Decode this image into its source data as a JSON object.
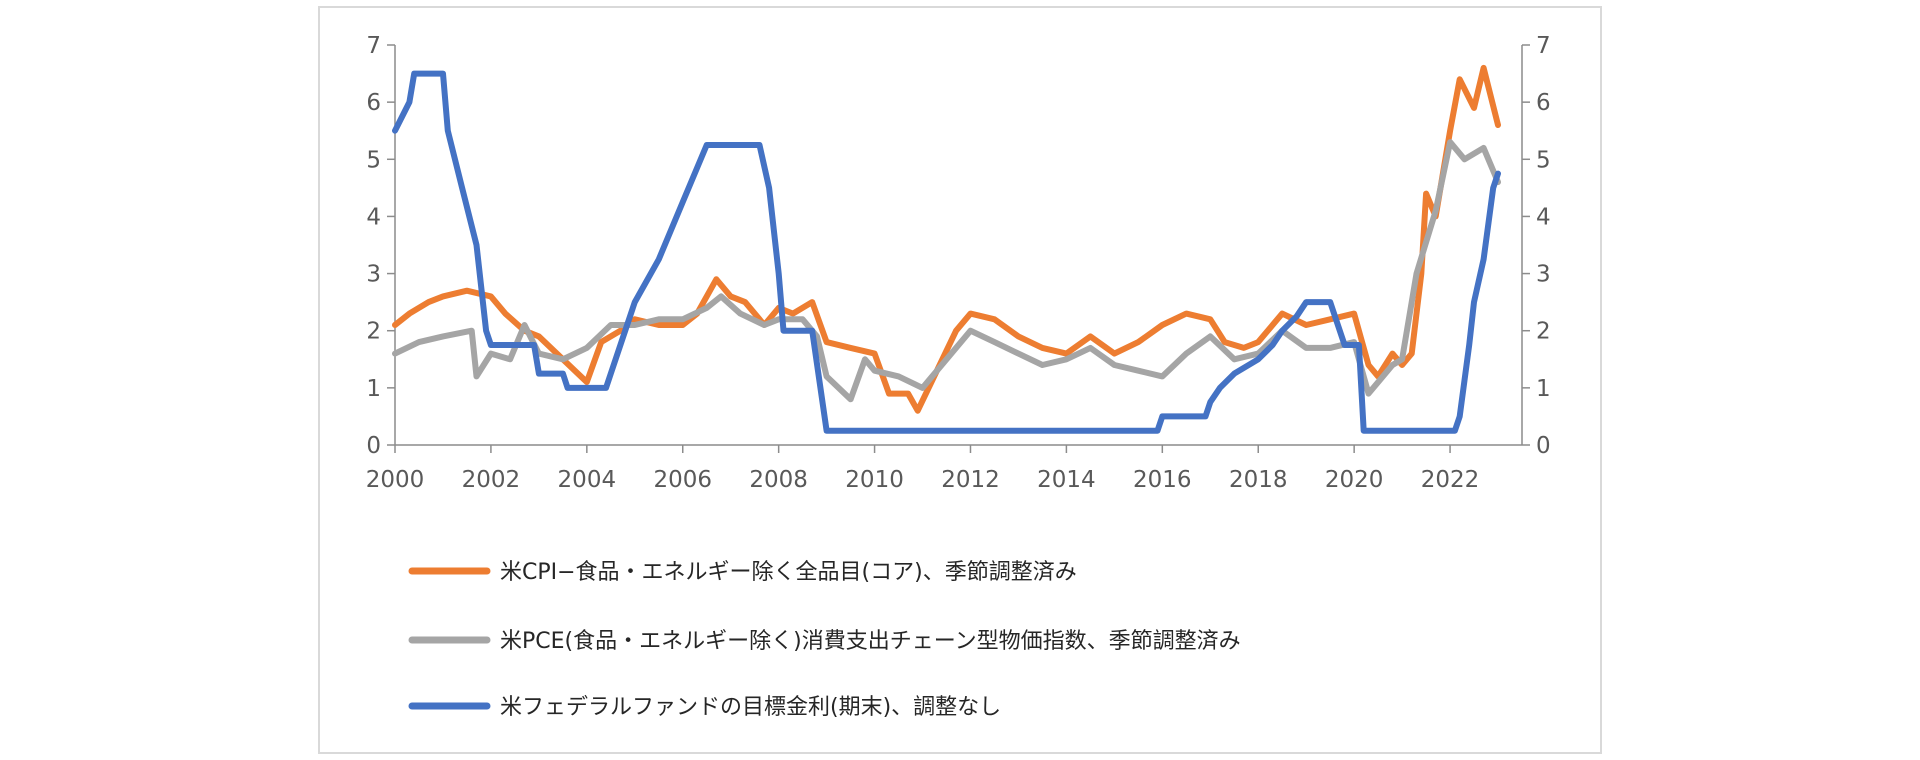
{
  "chart_data": {
    "type": "line",
    "x_range": [
      2000,
      2023.5
    ],
    "y_range": [
      0,
      7
    ],
    "y_ticks": [
      0,
      1,
      2,
      3,
      4,
      5,
      6,
      7
    ],
    "x_ticks": [
      2000,
      2002,
      2004,
      2006,
      2008,
      2010,
      2012,
      2014,
      2016,
      2018,
      2020,
      2022
    ],
    "x_tick_labels": [
      "2000",
      "2002",
      "2004",
      "2006",
      "2008",
      "2010",
      "2012",
      "2014",
      "2016",
      "2018",
      "2020",
      "2022"
    ],
    "dual_axis": true,
    "grid": false,
    "legend_position": "bottom",
    "series": [
      {
        "name": "米CPI−食品・エネルギー除く全品目(コア)、季節調整済み",
        "color": "#ED7D31",
        "points": [
          [
            2000.0,
            2.1
          ],
          [
            2000.3,
            2.3
          ],
          [
            2000.7,
            2.5
          ],
          [
            2001.0,
            2.6
          ],
          [
            2001.5,
            2.7
          ],
          [
            2002.0,
            2.6
          ],
          [
            2002.3,
            2.3
          ],
          [
            2002.7,
            2.0
          ],
          [
            2003.0,
            1.9
          ],
          [
            2003.5,
            1.5
          ],
          [
            2004.0,
            1.1
          ],
          [
            2004.3,
            1.8
          ],
          [
            2004.7,
            2.0
          ],
          [
            2005.0,
            2.2
          ],
          [
            2005.5,
            2.1
          ],
          [
            2006.0,
            2.1
          ],
          [
            2006.3,
            2.3
          ],
          [
            2006.7,
            2.9
          ],
          [
            2007.0,
            2.6
          ],
          [
            2007.3,
            2.5
          ],
          [
            2007.7,
            2.1
          ],
          [
            2008.0,
            2.4
          ],
          [
            2008.3,
            2.3
          ],
          [
            2008.7,
            2.5
          ],
          [
            2009.0,
            1.8
          ],
          [
            2009.5,
            1.7
          ],
          [
            2010.0,
            1.6
          ],
          [
            2010.3,
            0.9
          ],
          [
            2010.7,
            0.9
          ],
          [
            2010.9,
            0.6
          ],
          [
            2011.3,
            1.3
          ],
          [
            2011.7,
            2.0
          ],
          [
            2012.0,
            2.3
          ],
          [
            2012.5,
            2.2
          ],
          [
            2013.0,
            1.9
          ],
          [
            2013.5,
            1.7
          ],
          [
            2014.0,
            1.6
          ],
          [
            2014.5,
            1.9
          ],
          [
            2015.0,
            1.6
          ],
          [
            2015.5,
            1.8
          ],
          [
            2016.0,
            2.1
          ],
          [
            2016.5,
            2.3
          ],
          [
            2017.0,
            2.2
          ],
          [
            2017.3,
            1.8
          ],
          [
            2017.7,
            1.7
          ],
          [
            2018.0,
            1.8
          ],
          [
            2018.5,
            2.3
          ],
          [
            2019.0,
            2.1
          ],
          [
            2019.5,
            2.2
          ],
          [
            2020.0,
            2.3
          ],
          [
            2020.3,
            1.4
          ],
          [
            2020.5,
            1.2
          ],
          [
            2020.8,
            1.6
          ],
          [
            2021.0,
            1.4
          ],
          [
            2021.2,
            1.6
          ],
          [
            2021.4,
            3.0
          ],
          [
            2021.5,
            4.4
          ],
          [
            2021.7,
            4.0
          ],
          [
            2022.0,
            5.5
          ],
          [
            2022.2,
            6.4
          ],
          [
            2022.5,
            5.9
          ],
          [
            2022.7,
            6.6
          ],
          [
            2023.0,
            5.6
          ]
        ]
      },
      {
        "name": "米PCE(食品・エネルギー除く)消費支出チェーン型物価指数、季節調整済み",
        "color": "#A5A5A5",
        "points": [
          [
            2000.0,
            1.6
          ],
          [
            2000.5,
            1.8
          ],
          [
            2001.0,
            1.9
          ],
          [
            2001.6,
            2.0
          ],
          [
            2001.7,
            1.2
          ],
          [
            2002.0,
            1.6
          ],
          [
            2002.4,
            1.5
          ],
          [
            2002.7,
            2.1
          ],
          [
            2003.0,
            1.6
          ],
          [
            2003.5,
            1.5
          ],
          [
            2004.0,
            1.7
          ],
          [
            2004.5,
            2.1
          ],
          [
            2005.0,
            2.1
          ],
          [
            2005.5,
            2.2
          ],
          [
            2006.0,
            2.2
          ],
          [
            2006.5,
            2.4
          ],
          [
            2006.8,
            2.6
          ],
          [
            2007.2,
            2.3
          ],
          [
            2007.7,
            2.1
          ],
          [
            2008.0,
            2.2
          ],
          [
            2008.5,
            2.2
          ],
          [
            2008.8,
            1.9
          ],
          [
            2009.0,
            1.2
          ],
          [
            2009.5,
            0.8
          ],
          [
            2009.8,
            1.5
          ],
          [
            2010.0,
            1.3
          ],
          [
            2010.5,
            1.2
          ],
          [
            2011.0,
            1.0
          ],
          [
            2011.5,
            1.5
          ],
          [
            2012.0,
            2.0
          ],
          [
            2012.5,
            1.8
          ],
          [
            2013.0,
            1.6
          ],
          [
            2013.5,
            1.4
          ],
          [
            2014.0,
            1.5
          ],
          [
            2014.5,
            1.7
          ],
          [
            2015.0,
            1.4
          ],
          [
            2015.5,
            1.3
          ],
          [
            2016.0,
            1.2
          ],
          [
            2016.5,
            1.6
          ],
          [
            2017.0,
            1.9
          ],
          [
            2017.5,
            1.5
          ],
          [
            2018.0,
            1.6
          ],
          [
            2018.5,
            2.0
          ],
          [
            2019.0,
            1.7
          ],
          [
            2019.5,
            1.7
          ],
          [
            2020.0,
            1.8
          ],
          [
            2020.3,
            0.9
          ],
          [
            2020.8,
            1.4
          ],
          [
            2021.0,
            1.5
          ],
          [
            2021.3,
            3.0
          ],
          [
            2021.7,
            4.1
          ],
          [
            2022.0,
            5.3
          ],
          [
            2022.3,
            5.0
          ],
          [
            2022.7,
            5.2
          ],
          [
            2023.0,
            4.6
          ]
        ]
      },
      {
        "name": "米フェデラルファンドの目標金利(期末)、調整なし",
        "color": "#4472C4",
        "points": [
          [
            2000.0,
            5.5
          ],
          [
            2000.3,
            6.0
          ],
          [
            2000.4,
            6.5
          ],
          [
            2001.0,
            6.5
          ],
          [
            2001.1,
            5.5
          ],
          [
            2001.4,
            4.5
          ],
          [
            2001.7,
            3.5
          ],
          [
            2001.9,
            2.0
          ],
          [
            2002.0,
            1.75
          ],
          [
            2002.9,
            1.75
          ],
          [
            2003.0,
            1.25
          ],
          [
            2003.5,
            1.25
          ],
          [
            2003.6,
            1.0
          ],
          [
            2004.4,
            1.0
          ],
          [
            2004.5,
            1.25
          ],
          [
            2005.0,
            2.5
          ],
          [
            2005.5,
            3.25
          ],
          [
            2006.0,
            4.25
          ],
          [
            2006.5,
            5.25
          ],
          [
            2007.6,
            5.25
          ],
          [
            2007.8,
            4.5
          ],
          [
            2008.0,
            3.0
          ],
          [
            2008.1,
            2.0
          ],
          [
            2008.7,
            2.0
          ],
          [
            2009.0,
            0.25
          ],
          [
            2015.9,
            0.25
          ],
          [
            2016.0,
            0.5
          ],
          [
            2016.9,
            0.5
          ],
          [
            2017.0,
            0.75
          ],
          [
            2017.2,
            1.0
          ],
          [
            2017.5,
            1.25
          ],
          [
            2018.0,
            1.5
          ],
          [
            2018.3,
            1.75
          ],
          [
            2018.5,
            2.0
          ],
          [
            2018.8,
            2.25
          ],
          [
            2019.0,
            2.5
          ],
          [
            2019.5,
            2.5
          ],
          [
            2019.6,
            2.25
          ],
          [
            2019.8,
            1.75
          ],
          [
            2020.1,
            1.75
          ],
          [
            2020.2,
            0.25
          ],
          [
            2022.1,
            0.25
          ],
          [
            2022.2,
            0.5
          ],
          [
            2022.4,
            1.75
          ],
          [
            2022.5,
            2.5
          ],
          [
            2022.7,
            3.25
          ],
          [
            2022.9,
            4.5
          ],
          [
            2023.0,
            4.75
          ]
        ]
      }
    ]
  }
}
